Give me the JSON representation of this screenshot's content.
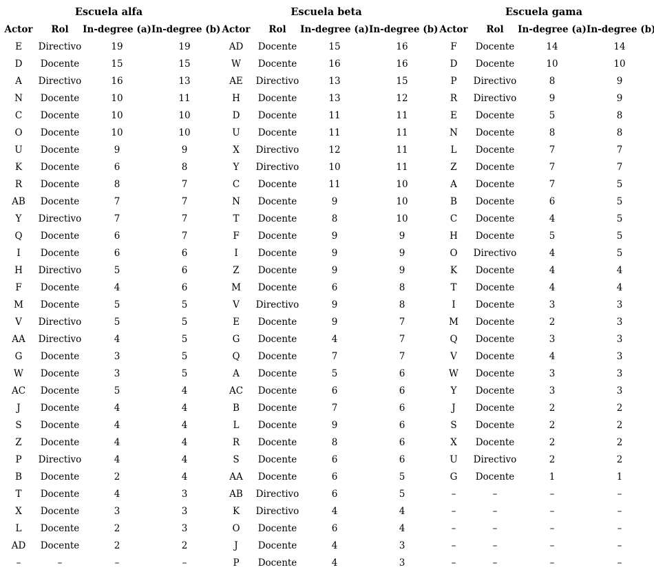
{
  "page": {
    "background_color": "#ffffff",
    "text_color": "#000000"
  },
  "table": {
    "groups": [
      {
        "title": "Escuela alfa",
        "columns": [
          "Actor",
          "Rol",
          "In-degree (a)",
          "In-degree (b)"
        ],
        "rows": [
          [
            "E",
            "Directivo",
            "19",
            "19"
          ],
          [
            "D",
            "Docente",
            "15",
            "15"
          ],
          [
            "A",
            "Directivo",
            "16",
            "13"
          ],
          [
            "N",
            "Docente",
            "10",
            "11"
          ],
          [
            "C",
            "Docente",
            "10",
            "10"
          ],
          [
            "O",
            "Docente",
            "10",
            "10"
          ],
          [
            "U",
            "Docente",
            "9",
            "9"
          ],
          [
            "K",
            "Docente",
            "6",
            "8"
          ],
          [
            "R",
            "Docente",
            "8",
            "7"
          ],
          [
            "AB",
            "Docente",
            "7",
            "7"
          ],
          [
            "Y",
            "Directivo",
            "7",
            "7"
          ],
          [
            "Q",
            "Docente",
            "6",
            "7"
          ],
          [
            "I",
            "Docente",
            "6",
            "6"
          ],
          [
            "H",
            "Directivo",
            "5",
            "6"
          ],
          [
            "F",
            "Docente",
            "4",
            "6"
          ],
          [
            "M",
            "Docente",
            "5",
            "5"
          ],
          [
            "V",
            "Directivo",
            "5",
            "5"
          ],
          [
            "AA",
            "Directivo",
            "4",
            "5"
          ],
          [
            "G",
            "Docente",
            "3",
            "5"
          ],
          [
            "W",
            "Docente",
            "3",
            "5"
          ],
          [
            "AC",
            "Docente",
            "5",
            "4"
          ],
          [
            "J",
            "Docente",
            "4",
            "4"
          ],
          [
            "S",
            "Docente",
            "4",
            "4"
          ],
          [
            "Z",
            "Docente",
            "4",
            "4"
          ],
          [
            "P",
            "Directivo",
            "4",
            "4"
          ],
          [
            "B",
            "Docente",
            "2",
            "4"
          ],
          [
            "T",
            "Docente",
            "4",
            "3"
          ],
          [
            "X",
            "Docente",
            "3",
            "3"
          ],
          [
            "L",
            "Docente",
            "2",
            "3"
          ],
          [
            "AD",
            "Docente",
            "2",
            "2"
          ],
          [
            "–",
            "–",
            "–",
            "–"
          ]
        ]
      },
      {
        "title": "Escuela beta",
        "columns": [
          "Actor",
          "Rol",
          "In-degree (a)",
          "In-degree (b)"
        ],
        "rows": [
          [
            "AD",
            "Docente",
            "15",
            "16"
          ],
          [
            "W",
            "Docente",
            "16",
            "16"
          ],
          [
            "AE",
            "Directivo",
            "13",
            "15"
          ],
          [
            "H",
            "Docente",
            "13",
            "12"
          ],
          [
            "D",
            "Docente",
            "11",
            "11"
          ],
          [
            "U",
            "Docente",
            "11",
            "11"
          ],
          [
            "X",
            "Directivo",
            "12",
            "11"
          ],
          [
            "Y",
            "Directivo",
            "10",
            "11"
          ],
          [
            "C",
            "Docente",
            "11",
            "10"
          ],
          [
            "N",
            "Docente",
            "9",
            "10"
          ],
          [
            "T",
            "Docente",
            "8",
            "10"
          ],
          [
            "F",
            "Docente",
            "9",
            "9"
          ],
          [
            "I",
            "Docente",
            "9",
            "9"
          ],
          [
            "Z",
            "Docente",
            "9",
            "9"
          ],
          [
            "M",
            "Docente",
            "6",
            "8"
          ],
          [
            "V",
            "Directivo",
            "9",
            "8"
          ],
          [
            "E",
            "Docente",
            "9",
            "7"
          ],
          [
            "G",
            "Docente",
            "4",
            "7"
          ],
          [
            "Q",
            "Docente",
            "7",
            "7"
          ],
          [
            "A",
            "Docente",
            "5",
            "6"
          ],
          [
            "AC",
            "Docente",
            "6",
            "6"
          ],
          [
            "B",
            "Docente",
            "7",
            "6"
          ],
          [
            "L",
            "Docente",
            "9",
            "6"
          ],
          [
            "R",
            "Docente",
            "8",
            "6"
          ],
          [
            "S",
            "Docente",
            "6",
            "6"
          ],
          [
            "AA",
            "Docente",
            "6",
            "5"
          ],
          [
            "AB",
            "Directivo",
            "6",
            "5"
          ],
          [
            "K",
            "Directivo",
            "4",
            "4"
          ],
          [
            "O",
            "Docente",
            "6",
            "4"
          ],
          [
            "J",
            "Docente",
            "4",
            "3"
          ],
          [
            "P",
            "Docente",
            "4",
            "3"
          ]
        ]
      },
      {
        "title": "Escuela gama",
        "columns": [
          "Actor",
          "Rol",
          "In-degree (a)",
          "In-degree (b)"
        ],
        "rows": [
          [
            "F",
            "Docente",
            "14",
            "14"
          ],
          [
            "D",
            "Docente",
            "10",
            "10"
          ],
          [
            "P",
            "Directivo",
            "8",
            "9"
          ],
          [
            "R",
            "Directivo",
            "9",
            "9"
          ],
          [
            "E",
            "Docente",
            "5",
            "8"
          ],
          [
            "N",
            "Docente",
            "8",
            "8"
          ],
          [
            "L",
            "Docente",
            "7",
            "7"
          ],
          [
            "Z",
            "Docente",
            "7",
            "7"
          ],
          [
            "A",
            "Docente",
            "7",
            "5"
          ],
          [
            "B",
            "Docente",
            "6",
            "5"
          ],
          [
            "C",
            "Docente",
            "4",
            "5"
          ],
          [
            "H",
            "Docente",
            "5",
            "5"
          ],
          [
            "O",
            "Directivo",
            "4",
            "5"
          ],
          [
            "K",
            "Docente",
            "4",
            "4"
          ],
          [
            "T",
            "Docente",
            "4",
            "4"
          ],
          [
            "I",
            "Docente",
            "3",
            "3"
          ],
          [
            "M",
            "Docente",
            "2",
            "3"
          ],
          [
            "Q",
            "Docente",
            "3",
            "3"
          ],
          [
            "V",
            "Docente",
            "4",
            "3"
          ],
          [
            "W",
            "Docente",
            "3",
            "3"
          ],
          [
            "Y",
            "Docente",
            "3",
            "3"
          ],
          [
            "J",
            "Docente",
            "2",
            "2"
          ],
          [
            "S",
            "Docente",
            "2",
            "2"
          ],
          [
            "X",
            "Docente",
            "2",
            "2"
          ],
          [
            "U",
            "Directivo",
            "2",
            "2"
          ],
          [
            "G",
            "Docente",
            "1",
            "1"
          ],
          [
            "–",
            "–",
            "–",
            "–"
          ],
          [
            "–",
            "–",
            "–",
            "–"
          ],
          [
            "–",
            "–",
            "–",
            "–"
          ],
          [
            "–",
            "–",
            "–",
            "–"
          ],
          [
            "–",
            "–",
            "–",
            "–"
          ]
        ]
      }
    ]
  }
}
